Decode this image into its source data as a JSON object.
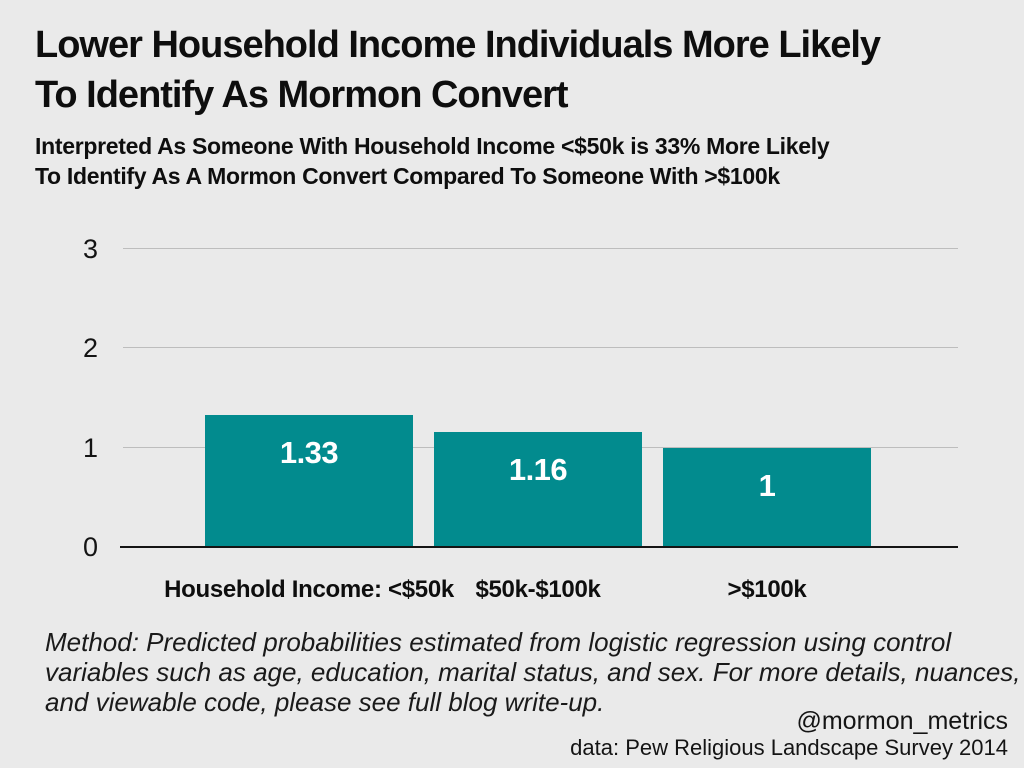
{
  "page": {
    "background_color": "#EAEAEA"
  },
  "chart_data": {
    "type": "bar",
    "title": "Lower Household Income Individuals More Likely To Identify As Mormon Convert",
    "title_lines": [
      "Lower Household Income Individuals More Likely",
      "To Identify As Mormon Convert"
    ],
    "subtitle": "Interpreted As Someone With Household Income <$50k is 33% More Likely To Identify As A Mormon Convert Compared To Someone With >$100k",
    "subtitle_lines": [
      "Interpreted As Someone With Household Income <$50k is 33% More Likely",
      "To Identify As A Mormon Convert Compared To Someone With >$100k"
    ],
    "categories": [
      "Household Income: <$50k",
      "$50k-$100k",
      ">$100k"
    ],
    "values": [
      1.33,
      1.16,
      1
    ],
    "value_labels": [
      "1.33",
      "1.16",
      "1"
    ],
    "xlabel": "",
    "ylabel": "",
    "ylim": [
      0,
      3
    ],
    "yticks": [
      0,
      1,
      2,
      3
    ],
    "grid": "horizontal",
    "legend": "none",
    "bar_color": "#028B8E",
    "gridline_color": "#BDBDBD",
    "axis_color": "#141414",
    "value_label_color": "#FFFFFF",
    "note": "Method: Predicted probabilities estimated from logistic regression using control variables such as age, education, marital status, and sex. For more details, nuances, and viewable code, please see full blog write-up.",
    "note_lines": [
      "Method: Predicted probabilities estimated from logistic regression using control",
      "variables such as age, education, marital status, and sex. For more details, nuances,",
      "and viewable code, please see full blog write-up."
    ],
    "credit": "@mormon_metrics",
    "source": "data: Pew Religious Landscape Survey 2014"
  }
}
